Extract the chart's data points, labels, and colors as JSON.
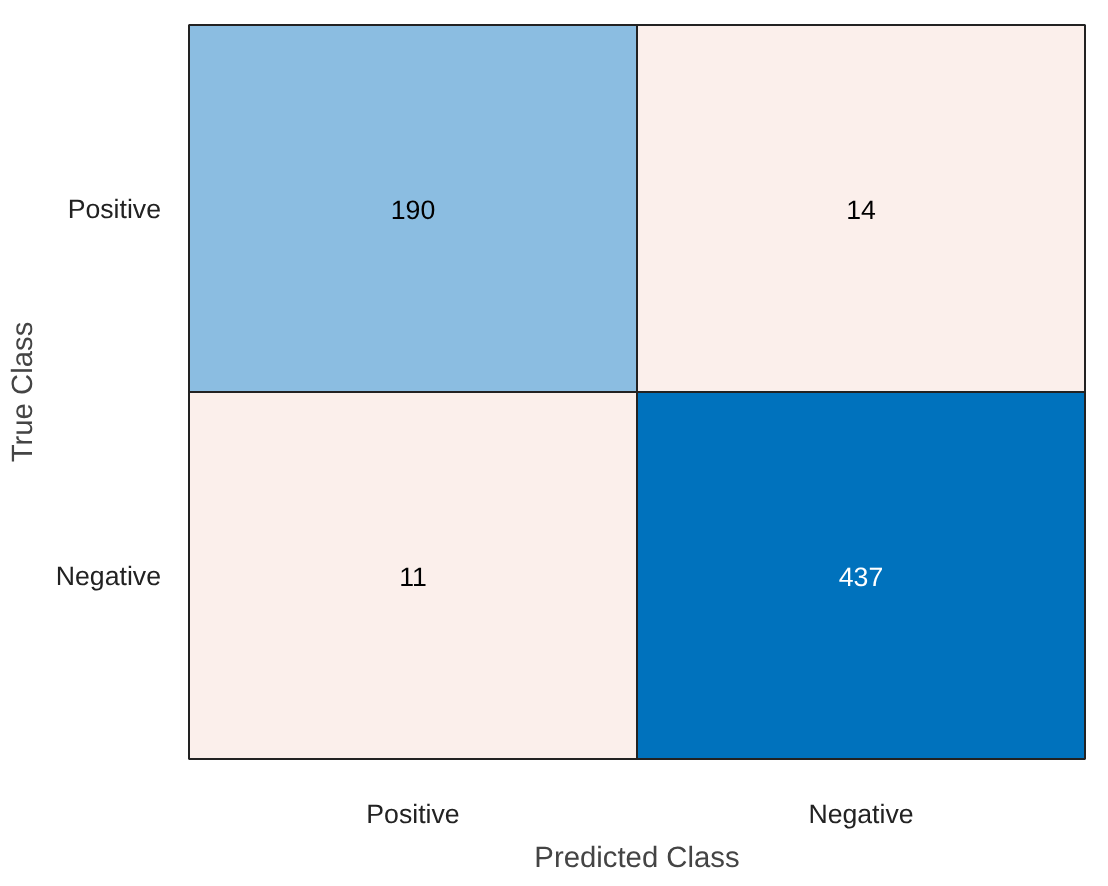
{
  "chart_data": {
    "type": "heatmap",
    "xlabel": "Predicted Class",
    "ylabel": "True Class",
    "categories": [
      "Positive",
      "Negative"
    ],
    "y_categories": [
      "Positive",
      "Negative"
    ],
    "cells": [
      [
        190,
        14
      ],
      [
        11,
        437
      ]
    ],
    "data_labels": true,
    "colors": [
      "#8bbde1",
      "#fbefeb",
      "#fbefeb",
      "#0072bd"
    ]
  }
}
